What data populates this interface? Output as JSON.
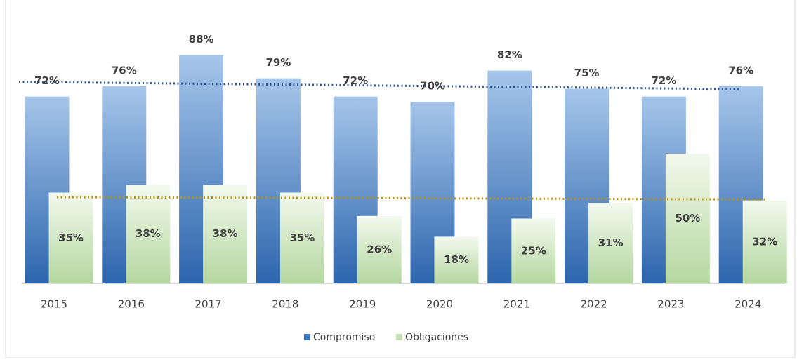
{
  "chart_data": {
    "type": "bar",
    "categories": [
      "2015",
      "2016",
      "2017",
      "2018",
      "2019",
      "2020",
      "2021",
      "2022",
      "2023",
      "2024"
    ],
    "series": [
      {
        "name": "Compromiso",
        "color": "#3a76bd",
        "values": [
          72,
          76,
          88,
          79,
          72,
          70,
          82,
          75,
          72,
          76
        ],
        "value_labels": [
          "72%",
          "76%",
          "88%",
          "79%",
          "72%",
          "70%",
          "82%",
          "75%",
          "72%",
          "76%"
        ]
      },
      {
        "name": "Obligaciones",
        "color": "#c5e0b4",
        "values": [
          35,
          38,
          38,
          35,
          26,
          18,
          25,
          31,
          50,
          32
        ],
        "value_labels": [
          "35%",
          "38%",
          "38%",
          "35%",
          "26%",
          "18%",
          "25%",
          "31%",
          "50%",
          "32%"
        ]
      }
    ],
    "legend": "bottom"
  }
}
